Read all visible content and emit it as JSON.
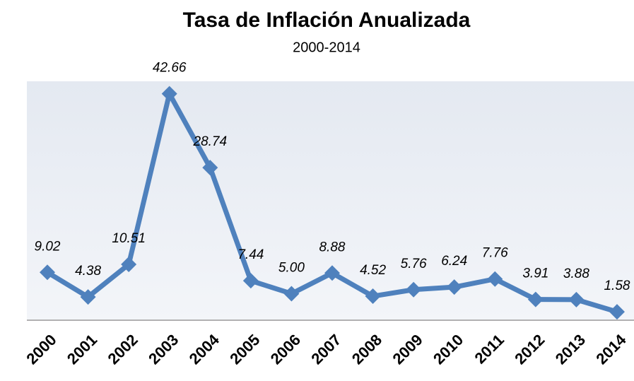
{
  "chart_data": {
    "type": "line",
    "title": "Tasa de Inflación Anualizada",
    "subtitle": "2000-2014",
    "categories": [
      "2000",
      "2001",
      "2002",
      "2003",
      "2004",
      "2005",
      "2006",
      "2007",
      "2008",
      "2009",
      "2010",
      "2011",
      "2012",
      "2013",
      "2014"
    ],
    "values": [
      9.02,
      4.38,
      10.51,
      42.66,
      28.74,
      7.44,
      5.0,
      8.88,
      4.52,
      5.76,
      6.24,
      7.76,
      3.91,
      3.88,
      1.58
    ],
    "value_labels": [
      "9.02",
      "4.38",
      "10.51",
      "42.66",
      "28.74",
      "7.44",
      "5.00",
      "8.88",
      "4.52",
      "5.76",
      "6.24",
      "7.76",
      "3.91",
      "3.88",
      "1.58"
    ],
    "color": "#4f81bd",
    "ylim": [
      0,
      45
    ]
  }
}
